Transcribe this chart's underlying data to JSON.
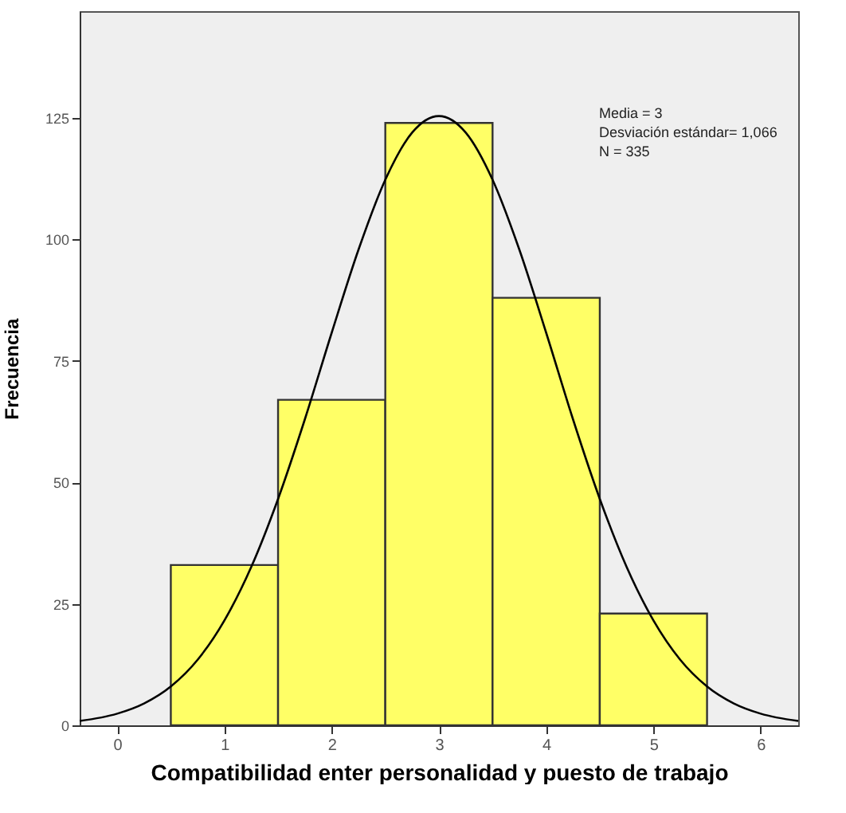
{
  "chart_data": {
    "type": "histogram",
    "xlabel": "Compatibilidad enter personalidad y puesto de trabajo",
    "ylabel": "Frecuencia",
    "series": [
      {
        "bins": [
          0.5,
          1.5,
          2.5,
          3.5,
          4.5,
          5.5
        ],
        "values": [
          33,
          67,
          124,
          88,
          23
        ],
        "color": "#ffff66"
      },
      {
        "type": "line",
        "color": "#000000",
        "x": [
          -0.35,
          0,
          0.25,
          0.5,
          0.75,
          1,
          1.25,
          1.5,
          1.75,
          2,
          2.25,
          2.5,
          2.75,
          3,
          3.25,
          3.5,
          3.75,
          4,
          4.25,
          4.5,
          4.75,
          5,
          5.25,
          5.5,
          5.75,
          6,
          6.35
        ],
        "values": [
          0.9,
          2.4,
          4.5,
          8,
          13.5,
          21.6,
          32.6,
          46.6,
          63,
          80.8,
          97.9,
          112.3,
          122,
          125.4,
          122,
          112.3,
          97.9,
          80.8,
          63,
          46.6,
          32.6,
          21.6,
          13.5,
          8,
          4.5,
          2.4,
          0.9
        ]
      }
    ],
    "xlim": [
      -0.35,
      6.35
    ],
    "xticks": [
      0,
      1,
      2,
      3,
      4,
      5,
      6
    ],
    "ylim": [
      0,
      147
    ],
    "yticks": [
      0,
      25,
      50,
      75,
      100,
      125
    ],
    "grid": false,
    "line_style": "solid",
    "annotations": [
      "Media = 3",
      "Desviación estándar= 1,066",
      "N = 335"
    ]
  }
}
